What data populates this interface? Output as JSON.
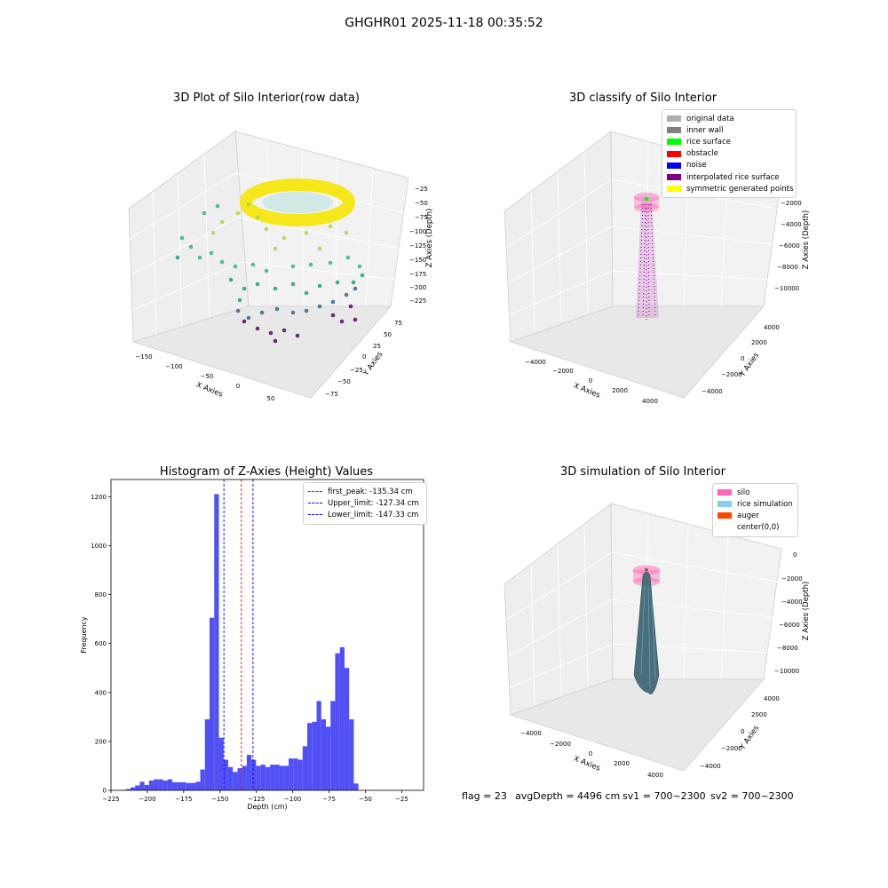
{
  "figure": {
    "suptitle": "GHGHR01 2025-11-18 00:35:52",
    "footer": {
      "flag": "flag = 23",
      "avg_depth": "avgDepth = 4496 cm",
      "sv1": "sv1 = 700~2300",
      "sv2": "sv2 = 700~2300"
    }
  },
  "colors": {
    "hist_bar": "#5050f5",
    "first_peak": "#ff0000",
    "limits": "#0000ff",
    "silo_pink": "#ff69b4",
    "rice_sim": "#87ceeb",
    "auger": "#ff4500",
    "rice_surface": "#00ff00",
    "obstacle": "#ff0000",
    "noise": "#0000ff",
    "interpolated": "#800080",
    "symmetric": "#ffff00",
    "original": "#b0b0b0",
    "inner_wall": "#808080"
  },
  "chart_data": [
    {
      "id": "raw",
      "type": "scatter",
      "title": "3D Plot of Silo Interior(row data)",
      "xlabel": "X Axies",
      "ylabel": "Y Axies",
      "zlabel": "Z Axies (Depth)",
      "x_ticks": [
        "−150",
        "−100",
        "−50",
        "0",
        "50"
      ],
      "y_ticks": [
        "−75",
        "−50",
        "−25",
        "0",
        "25",
        "50",
        "75"
      ],
      "z_ticks": [
        "−25",
        "−50",
        "−75",
        "−100",
        "−125",
        "−150",
        "−175",
        "−200",
        "−225"
      ],
      "colormap": "viridis"
    },
    {
      "id": "classify",
      "type": "scatter",
      "title": "3D classify of Silo Interior",
      "xlabel": "X Axies",
      "ylabel": "Y Axies",
      "zlabel": "Z Axies (Depth)",
      "x_ticks": [
        "−4000",
        "−2000",
        "0",
        "2000",
        "4000"
      ],
      "y_ticks": [
        "−4000",
        "−2000",
        "0",
        "2000",
        "4000"
      ],
      "z_ticks": [
        "0",
        "−2000",
        "−4000",
        "−6000",
        "−8000",
        "−10000"
      ],
      "legend": [
        {
          "label": "original data",
          "color": "#b0b0b0"
        },
        {
          "label": "inner wall",
          "color": "#808080"
        },
        {
          "label": "rice surface",
          "color": "#00ff00"
        },
        {
          "label": "obstacle",
          "color": "#ff0000"
        },
        {
          "label": "noise",
          "color": "#0000ff"
        },
        {
          "label": "interpolated rice surface",
          "color": "#800080"
        },
        {
          "label": "symmetric generated points",
          "color": "#ffff00"
        }
      ]
    },
    {
      "id": "histogram",
      "type": "bar",
      "title": "Histogram of Z-Axies (Height) Values",
      "xlabel": "Depth (cm)",
      "ylabel": "Frequency",
      "xlim": [
        -225,
        -10
      ],
      "ylim": [
        0,
        1270
      ],
      "x_ticks": [
        -225,
        -200,
        -175,
        -150,
        -125,
        -100,
        -75,
        -50,
        -25
      ],
      "x_tick_labels": [
        "−225",
        "−200",
        "−175",
        "−150",
        "−125",
        "−100",
        "−75",
        "−50",
        "−25"
      ],
      "y_ticks": [
        0,
        200,
        400,
        600,
        800,
        1000,
        1200
      ],
      "bin_start": -218,
      "bin_width": 3.2,
      "values": [
        2,
        5,
        12,
        20,
        35,
        22,
        40,
        45,
        45,
        40,
        45,
        33,
        33,
        33,
        30,
        30,
        35,
        85,
        290,
        705,
        1210,
        215,
        125,
        95,
        75,
        90,
        100,
        145,
        125,
        100,
        105,
        95,
        105,
        105,
        100,
        100,
        130,
        130,
        125,
        180,
        275,
        280,
        365,
        290,
        260,
        365,
        560,
        585,
        500,
        290,
        28
      ],
      "vlines": [
        {
          "x": -135.34,
          "label": "first_peak: -135.34 cm",
          "color": "#ff0000"
        },
        {
          "x": -127.34,
          "label": "Upper_limit: -127.34 cm",
          "color": "#0000ff"
        },
        {
          "x": -147.33,
          "label": "Lower_limit: -147.33 cm",
          "color": "#0000ff"
        }
      ]
    },
    {
      "id": "simulation",
      "type": "scatter",
      "title": "3D simulation of Silo Interior",
      "xlabel": "X Axies",
      "ylabel": "Y Axies",
      "zlabel": "Z Axies (Depth)",
      "x_ticks": [
        "−4000",
        "−2000",
        "0",
        "2000",
        "4000"
      ],
      "y_ticks": [
        "−4000",
        "−2000",
        "0",
        "2000",
        "4000"
      ],
      "z_ticks": [
        "0",
        "−2000",
        "−4000",
        "−6000",
        "−8000",
        "−10000"
      ],
      "legend": [
        {
          "label": "silo",
          "color": "#ff69b4"
        },
        {
          "label": "rice simulation",
          "color": "#87ceeb"
        },
        {
          "label": "auger",
          "color": "#ff4500"
        },
        {
          "label": "center(0,0)",
          "color": "#ffffff"
        }
      ]
    }
  ]
}
